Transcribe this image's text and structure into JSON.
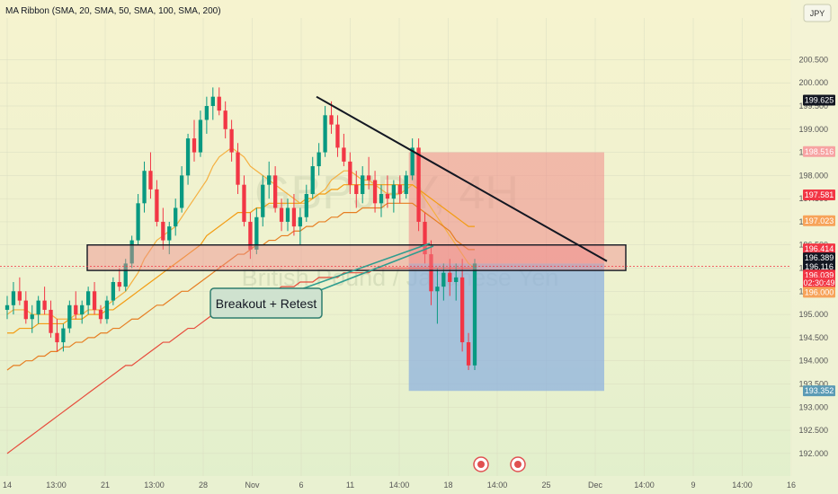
{
  "indicator": {
    "label": "MA Ribbon (SMA, 20, SMA, 50, SMA, 100, SMA, 200)"
  },
  "currency_button": {
    "label": "JPY"
  },
  "watermark": {
    "symbol": "GBPJPY, 4H",
    "name": "British Pound / Japanese Yen"
  },
  "annotation": {
    "label": "Breakout + Retest"
  },
  "chart_data": {
    "type": "candlestick",
    "y_axis": {
      "min": 191.9,
      "max": 201.4,
      "ticks": [
        "200.500",
        "200.000",
        "199.500",
        "199.000",
        "198.500",
        "198.000",
        "197.500",
        "197.000",
        "196.500",
        "196.000",
        "195.500",
        "195.000",
        "194.500",
        "194.000",
        "193.500",
        "193.000",
        "192.500",
        "192.000"
      ]
    },
    "x_axis": {
      "ticks": [
        "14",
        "13:00",
        "21",
        "13:00",
        "28",
        "Nov",
        "6",
        "11",
        "14:00",
        "18",
        "14:00",
        "25",
        "Dec",
        "14:00",
        "9",
        "14:00",
        "16"
      ]
    },
    "price_tags": [
      {
        "label": "199.625",
        "color": "#131722",
        "text_color": "#ffffff"
      },
      {
        "label": "198.516",
        "color": "#f7a3a3",
        "text_color": "#ffffff"
      },
      {
        "label": "197.581",
        "color": "#f23645",
        "text_color": "#ffffff"
      },
      {
        "label": "197.023",
        "color": "#f7a35a",
        "text_color": "#ffffff"
      },
      {
        "label": "196.414",
        "color": "#f23645",
        "text_color": "#ffffff"
      },
      {
        "label": "196.389",
        "color": "#131722",
        "text_color": "#ffffff"
      },
      {
        "label": "196.116",
        "color": "#131722",
        "text_color": "#ffffff"
      },
      {
        "label": "196.039",
        "color": "#f23645",
        "text_color": "#ffffff"
      },
      {
        "label": "02:30:49",
        "color": "#f23645",
        "text_color": "#ffffff"
      },
      {
        "label": "196.000",
        "color": "#f7a35a",
        "text_color": "#ffffff"
      },
      {
        "label": "193.352",
        "color": "#5b9bb5",
        "text_color": "#ffffff"
      }
    ],
    "zones": {
      "stop": {
        "top": 198.5,
        "bottom": 196.1
      },
      "target": {
        "top": 196.1,
        "bottom": 193.35
      },
      "resistance_box": {
        "top": 196.5,
        "bottom": 195.95
      }
    },
    "trendline": {
      "start": 199.7,
      "end": 196.15
    },
    "candles": [
      [
        195.1,
        195.4,
        194.9,
        195.2
      ],
      [
        195.2,
        195.7,
        195.0,
        195.5
      ],
      [
        195.5,
        195.8,
        195.2,
        195.3
      ],
      [
        195.3,
        195.5,
        194.8,
        194.9
      ],
      [
        194.9,
        195.2,
        194.6,
        195.0
      ],
      [
        195.0,
        195.4,
        194.8,
        195.3
      ],
      [
        195.3,
        195.6,
        195.0,
        195.1
      ],
      [
        195.1,
        195.3,
        194.5,
        194.6
      ],
      [
        194.6,
        194.9,
        194.2,
        194.4
      ],
      [
        194.4,
        194.8,
        194.2,
        194.7
      ],
      [
        194.7,
        195.3,
        194.6,
        195.2
      ],
      [
        195.2,
        195.5,
        194.9,
        195.0
      ],
      [
        195.0,
        195.3,
        194.8,
        195.2
      ],
      [
        195.2,
        195.6,
        195.0,
        195.5
      ],
      [
        195.5,
        195.7,
        195.0,
        195.1
      ],
      [
        195.1,
        195.2,
        194.8,
        194.9
      ],
      [
        194.9,
        195.4,
        194.8,
        195.3
      ],
      [
        195.3,
        195.8,
        195.2,
        195.7
      ],
      [
        195.7,
        196.0,
        195.5,
        195.6
      ],
      [
        195.6,
        196.2,
        195.5,
        196.1
      ],
      [
        196.1,
        196.7,
        196.0,
        196.6
      ],
      [
        196.6,
        197.6,
        196.5,
        197.4
      ],
      [
        197.4,
        198.3,
        197.2,
        198.1
      ],
      [
        198.1,
        198.5,
        197.5,
        197.7
      ],
      [
        197.7,
        197.9,
        196.9,
        197.0
      ],
      [
        197.0,
        197.3,
        196.4,
        196.6
      ],
      [
        196.6,
        197.0,
        196.3,
        196.9
      ],
      [
        196.9,
        197.5,
        196.7,
        197.3
      ],
      [
        197.3,
        198.2,
        197.2,
        198.0
      ],
      [
        198.0,
        198.9,
        197.8,
        198.8
      ],
      [
        198.8,
        199.2,
        198.3,
        198.5
      ],
      [
        198.5,
        199.4,
        198.4,
        199.2
      ],
      [
        199.2,
        199.7,
        198.9,
        199.5
      ],
      [
        199.5,
        199.9,
        199.2,
        199.7
      ],
      [
        199.7,
        199.9,
        199.3,
        199.4
      ],
      [
        199.4,
        199.6,
        198.8,
        199.0
      ],
      [
        199.0,
        199.2,
        198.3,
        198.5
      ],
      [
        198.5,
        198.7,
        197.6,
        197.8
      ],
      [
        197.8,
        198.0,
        196.9,
        197.0
      ],
      [
        197.0,
        197.2,
        196.2,
        196.4
      ],
      [
        196.4,
        197.3,
        196.3,
        197.1
      ],
      [
        197.1,
        198.0,
        196.9,
        197.8
      ],
      [
        197.8,
        198.3,
        197.5,
        198.0
      ],
      [
        198.0,
        198.2,
        197.2,
        197.3
      ],
      [
        197.3,
        197.5,
        196.8,
        197.0
      ],
      [
        197.0,
        197.5,
        196.8,
        197.3
      ],
      [
        197.3,
        197.6,
        196.7,
        196.9
      ],
      [
        196.9,
        197.3,
        196.5,
        197.1
      ],
      [
        197.1,
        197.8,
        197.0,
        197.6
      ],
      [
        197.6,
        198.4,
        197.5,
        198.2
      ],
      [
        198.2,
        198.7,
        198.0,
        198.5
      ],
      [
        198.5,
        199.5,
        198.4,
        199.3
      ],
      [
        199.3,
        199.6,
        198.9,
        199.1
      ],
      [
        199.1,
        199.3,
        198.4,
        198.6
      ],
      [
        198.6,
        198.9,
        198.2,
        198.3
      ],
      [
        198.3,
        198.5,
        197.6,
        197.8
      ],
      [
        197.8,
        198.1,
        197.3,
        197.6
      ],
      [
        197.6,
        198.2,
        197.4,
        198.0
      ],
      [
        198.0,
        198.4,
        197.7,
        197.9
      ],
      [
        197.9,
        198.1,
        197.2,
        197.4
      ],
      [
        197.4,
        197.8,
        197.1,
        197.6
      ],
      [
        197.6,
        198.0,
        197.3,
        197.5
      ],
      [
        197.5,
        197.9,
        197.2,
        197.8
      ],
      [
        197.8,
        198.0,
        197.4,
        197.6
      ],
      [
        197.6,
        198.1,
        197.5,
        198.0
      ],
      [
        198.0,
        198.8,
        197.9,
        198.6
      ],
      [
        198.6,
        198.8,
        196.8,
        197.0
      ],
      [
        197.0,
        197.2,
        196.1,
        196.3
      ],
      [
        196.3,
        196.6,
        195.2,
        195.5
      ],
      [
        195.5,
        196.0,
        194.8,
        195.6
      ],
      [
        195.6,
        196.1,
        195.3,
        195.9
      ],
      [
        195.9,
        196.2,
        195.4,
        195.7
      ],
      [
        195.7,
        196.1,
        195.3,
        195.8
      ],
      [
        195.8,
        196.2,
        194.2,
        194.4
      ],
      [
        194.4,
        194.6,
        193.8,
        193.9
      ],
      [
        193.9,
        196.2,
        193.8,
        196.1
      ]
    ],
    "ma_series": [
      {
        "period": 20,
        "color": "#f5b041",
        "values": [
          195.0,
          195.1,
          195.1,
          195.1,
          195.0,
          195.0,
          195.0,
          195.0,
          194.9,
          194.9,
          194.9,
          195.0,
          195.0,
          195.1,
          195.1,
          195.1,
          195.2,
          195.3,
          195.4,
          195.5,
          195.7,
          195.9,
          196.2,
          196.4,
          196.6,
          196.7,
          196.8,
          196.9,
          197.1,
          197.3,
          197.5,
          197.7,
          197.9,
          198.2,
          198.4,
          198.5,
          198.6,
          198.5,
          198.4,
          198.2,
          198.1,
          198.0,
          197.9,
          197.8,
          197.7,
          197.6,
          197.5,
          197.4,
          197.4,
          197.5,
          197.6,
          197.7,
          197.9,
          198.0,
          198.1,
          198.1,
          198.0,
          197.9,
          197.9,
          197.8,
          197.7,
          197.6,
          197.6,
          197.6,
          197.7,
          197.8,
          197.7,
          197.5,
          197.3,
          197.1,
          196.9,
          196.7,
          196.5,
          196.3,
          196.1,
          196.0
        ]
      },
      {
        "period": 50,
        "color": "#f39c12",
        "values": [
          194.6,
          194.6,
          194.7,
          194.7,
          194.7,
          194.8,
          194.8,
          194.8,
          194.8,
          194.8,
          194.9,
          194.9,
          194.9,
          195.0,
          195.0,
          195.0,
          195.1,
          195.1,
          195.2,
          195.3,
          195.4,
          195.5,
          195.6,
          195.7,
          195.8,
          195.9,
          196.0,
          196.1,
          196.2,
          196.3,
          196.4,
          196.5,
          196.7,
          196.8,
          196.9,
          197.0,
          197.1,
          197.2,
          197.2,
          197.2,
          197.3,
          197.3,
          197.4,
          197.4,
          197.4,
          197.4,
          197.4,
          197.4,
          197.5,
          197.5,
          197.6,
          197.6,
          197.7,
          197.7,
          197.8,
          197.8,
          197.8,
          197.8,
          197.8,
          197.8,
          197.8,
          197.8,
          197.8,
          197.8,
          197.8,
          197.8,
          197.7,
          197.6,
          197.5,
          197.4,
          197.3,
          197.2,
          197.1,
          197.0,
          196.9,
          196.9
        ]
      },
      {
        "period": 100,
        "color": "#e67e22",
        "values": [
          193.8,
          193.9,
          193.9,
          194.0,
          194.0,
          194.1,
          194.1,
          194.2,
          194.2,
          194.3,
          194.3,
          194.4,
          194.4,
          194.5,
          194.5,
          194.6,
          194.6,
          194.7,
          194.7,
          194.8,
          194.9,
          194.9,
          195.0,
          195.1,
          195.2,
          195.2,
          195.3,
          195.4,
          195.5,
          195.5,
          195.6,
          195.7,
          195.8,
          195.9,
          196.0,
          196.1,
          196.2,
          196.3,
          196.3,
          196.4,
          196.5,
          196.5,
          196.6,
          196.6,
          196.7,
          196.7,
          196.8,
          196.8,
          196.9,
          196.9,
          197.0,
          197.0,
          197.1,
          197.1,
          197.2,
          197.2,
          197.2,
          197.3,
          197.3,
          197.3,
          197.3,
          197.4,
          197.4,
          197.4,
          197.4,
          197.4,
          197.3,
          197.2,
          197.1,
          197.0,
          196.9,
          196.8,
          196.6,
          196.5,
          196.4,
          196.4
        ]
      },
      {
        "period": 200,
        "color": "#e74c3c",
        "values": [
          192.0,
          192.1,
          192.2,
          192.3,
          192.4,
          192.5,
          192.6,
          192.7,
          192.8,
          192.9,
          193.0,
          193.1,
          193.2,
          193.3,
          193.4,
          193.5,
          193.6,
          193.7,
          193.8,
          193.9,
          193.9,
          194.0,
          194.1,
          194.2,
          194.3,
          194.4,
          194.4,
          194.5,
          194.6,
          194.7,
          194.7,
          194.8,
          194.9,
          195.0,
          195.0,
          195.1,
          195.2,
          195.2,
          195.3,
          195.3,
          195.4,
          195.4,
          195.5,
          195.5,
          195.6,
          195.6,
          195.6,
          195.7,
          195.7,
          195.7,
          195.8,
          195.8,
          195.8,
          195.8,
          195.9,
          195.9,
          195.9,
          195.9,
          195.9,
          196.0,
          196.0,
          196.0,
          196.0,
          196.0,
          196.0,
          196.0,
          196.0,
          196.0,
          196.0,
          196.0,
          196.0,
          196.0,
          196.0,
          196.0,
          196.0,
          196.0
        ]
      }
    ]
  }
}
